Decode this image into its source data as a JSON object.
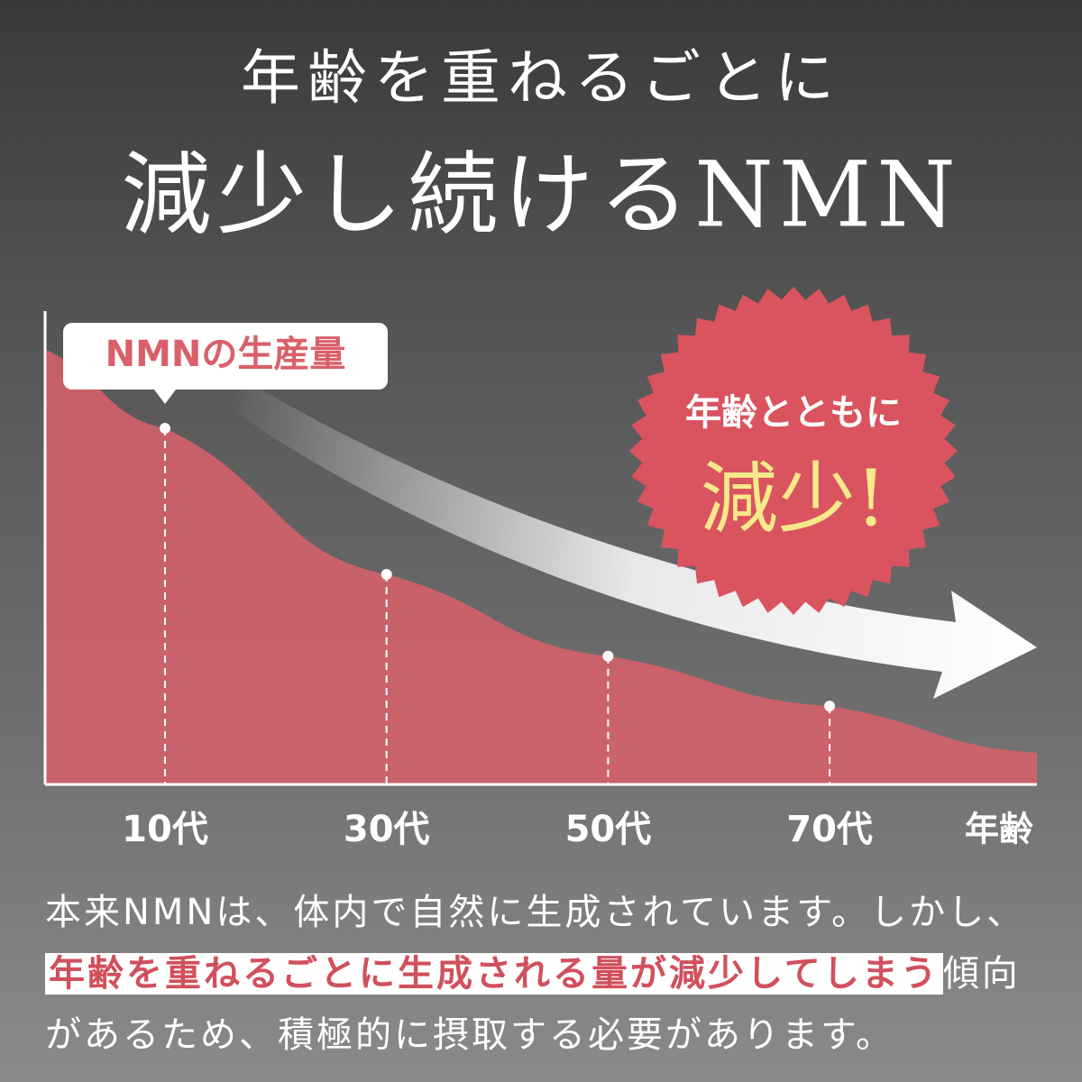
{
  "heading": {
    "line1": "年齢を重ねるごとに",
    "line2": "減少し続けるNMN"
  },
  "chart_data": {
    "type": "area",
    "categories": [
      "10代",
      "30代",
      "50代",
      "70代"
    ],
    "series": [
      {
        "name": "NMNの生産量",
        "color": "#d9606a",
        "values": [
          100,
          59,
          36,
          22
        ]
      }
    ],
    "x_label": "年齢",
    "ylim": [
      0,
      100
    ],
    "badge": {
      "line1": "年齢とともに",
      "line2": "減少!"
    }
  },
  "body": {
    "part1": "本来NMNは、体内で自然に生成されています。しかし、",
    "highlight": "年齢を重ねるごとに生成される量が減少してしまう",
    "part2": "傾向があるため、積極的に摂取する必要があります。"
  }
}
